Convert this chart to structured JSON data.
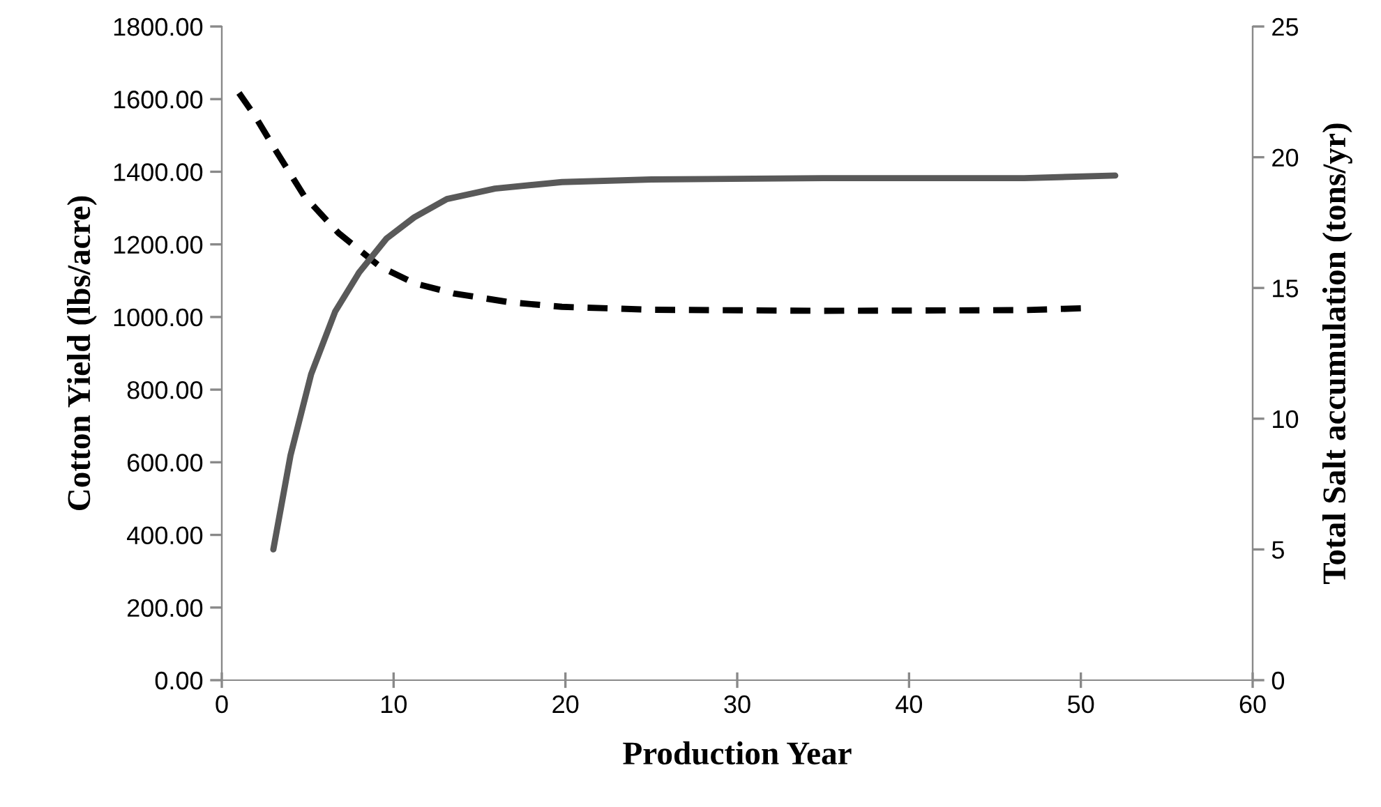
{
  "chart_data": {
    "type": "line",
    "xlabel": "Production Year",
    "ylabel": "Cotton Yield (lbs/acre)",
    "y2label": "Total Salt accumulation (tons/yr)",
    "xlim": [
      0,
      60
    ],
    "xticks": [
      0,
      10,
      20,
      30,
      40,
      50,
      60
    ],
    "ylim": [
      0,
      1800
    ],
    "yticks": [
      {
        "value": 0,
        "label": "0.00"
      },
      {
        "value": 200,
        "label": "200.00"
      },
      {
        "value": 400,
        "label": "400.00"
      },
      {
        "value": 600,
        "label": "600.00"
      },
      {
        "value": 800,
        "label": "800.00"
      },
      {
        "value": 1000,
        "label": "1000.00"
      },
      {
        "value": 1200,
        "label": "1200.00"
      },
      {
        "value": 1400,
        "label": "1400.00"
      },
      {
        "value": 1600,
        "label": "1600.00"
      },
      {
        "value": 1800,
        "label": "1800.00"
      }
    ],
    "y2lim": [
      0,
      25
    ],
    "y2ticks": [
      0,
      5,
      10,
      15,
      20,
      25
    ],
    "grid": false,
    "legend": false,
    "series": [
      {
        "color": "#000000",
        "line_style": "dashed",
        "x": [
          1,
          1.9,
          3.2,
          4.8,
          6.8,
          9.2,
          11.2,
          13.5,
          16.7,
          19.8,
          25,
          35,
          46.7,
          50
        ],
        "values": [
          1617,
          1556,
          1454,
          1333,
          1231,
          1139,
          1093,
          1065,
          1041,
          1028,
          1020,
          1017,
          1019,
          1024
        ]
      },
      {
        "color": "#595959",
        "line_style": "solid",
        "axis": "y2",
        "x": [
          3,
          4,
          5.2,
          6.6,
          8,
          9.6,
          11.2,
          13.1,
          15.9,
          19.8,
          25,
          35,
          46.7,
          52
        ],
        "values": [
          5.0,
          8.6,
          11.7,
          14.1,
          15.6,
          16.9,
          17.7,
          18.4,
          18.8,
          19.05,
          19.15,
          19.2,
          19.2,
          19.3
        ]
      }
    ]
  }
}
